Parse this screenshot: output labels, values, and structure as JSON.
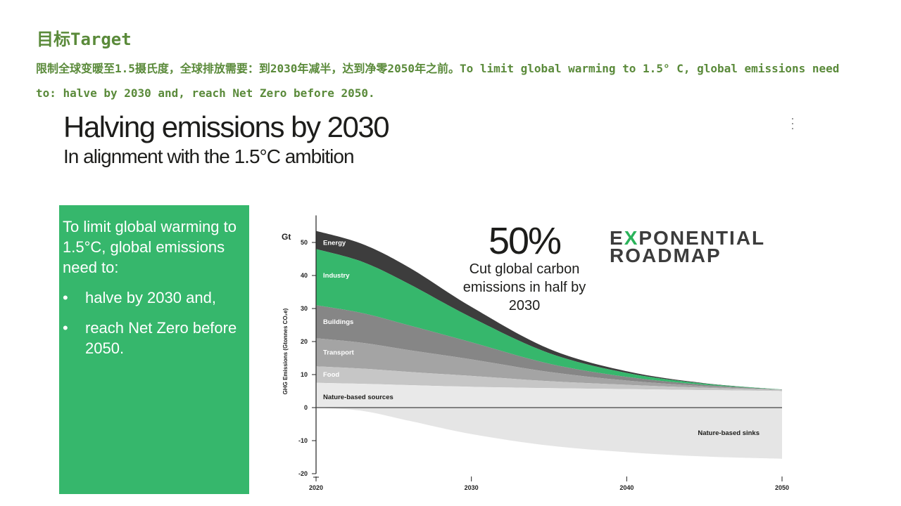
{
  "page": {
    "title": "目标Target",
    "description": "限制全球变暖至1.5摄氏度，全球排放需要：到2030年减半，达到净零2050年之前。To limit global warming to 1.5° C, global emissions need to: halve by 2030 and, reach Net Zero before 2050."
  },
  "hero": {
    "title": "Halving emissions by 2030",
    "subtitle": "In alignment with the 1.5°C ambition"
  },
  "green_box": {
    "intro": "To limit global warming to 1.5°C, global emissions need to:",
    "bullet_symbol": "•",
    "bullets": [
      "halve by 2030 and,",
      "reach Net Zero before 2050."
    ],
    "background": "#36b76c"
  },
  "callout": {
    "percent": "50%",
    "caption": "Cut global carbon emissions in half by 2030"
  },
  "logo": {
    "line1_a": "E",
    "line1_x": "X",
    "line1_b": "PONENTIAL",
    "line2": "ROADMAP",
    "accent": "#2bb35a"
  },
  "chart_data": {
    "type": "area",
    "subtype": "stacked",
    "xlabel": "",
    "ylabel": "GHG Emissions (Gtonnes CO₂e)",
    "yunit": "Gt",
    "xlim": [
      2020,
      2050
    ],
    "ylim": [
      -20,
      55
    ],
    "x_ticks": [
      2020,
      2030,
      2040,
      2050
    ],
    "y_ticks": [
      50,
      40,
      30,
      20,
      10,
      0,
      -10,
      -20
    ],
    "x": [
      2020,
      2023,
      2026,
      2030,
      2035,
      2040,
      2045,
      2050
    ],
    "series": [
      {
        "name": "Nature-based sources",
        "color": "#e9e9e9",
        "values": [
          7.5,
          7.2,
          6.8,
          6.3,
          5.9,
          5.6,
          5.3,
          5.0
        ]
      },
      {
        "name": "Food",
        "color": "#c6c6c6",
        "values": [
          5.0,
          4.6,
          4.0,
          3.3,
          2.1,
          1.3,
          0.7,
          0.3
        ]
      },
      {
        "name": "Transport",
        "color": "#a4a4a4",
        "values": [
          8.5,
          7.8,
          6.6,
          5.0,
          2.8,
          1.3,
          0.5,
          0.1
        ]
      },
      {
        "name": "Buildings",
        "color": "#868686",
        "values": [
          10.0,
          9.0,
          7.5,
          5.2,
          2.5,
          1.1,
          0.4,
          0.05
        ]
      },
      {
        "name": "Industry",
        "color": "#36b76c",
        "values": [
          17.0,
          15.5,
          12.5,
          7.5,
          3.2,
          1.2,
          0.35,
          0.05
        ]
      },
      {
        "name": "Energy",
        "color": "#3d3d3d",
        "values": [
          5.5,
          5.4,
          5.0,
          3.2,
          1.3,
          0.5,
          0.15,
          0.0
        ]
      },
      {
        "name": "Nature-based sinks",
        "color": "#e5e5e5",
        "values": [
          0,
          -1.0,
          -4.0,
          -8.0,
          -11.5,
          -13.5,
          -14.8,
          -15.5
        ]
      }
    ],
    "colors": {
      "axis": "#222222",
      "zero_line": "#444444"
    }
  }
}
